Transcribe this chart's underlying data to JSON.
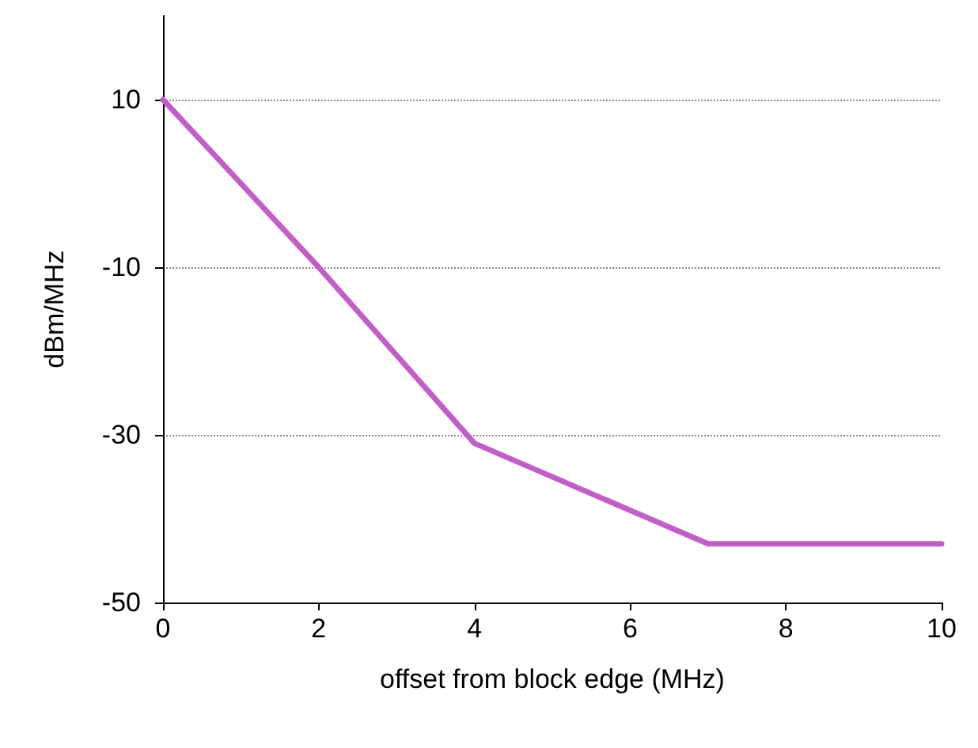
{
  "chart_data": {
    "type": "line",
    "xlabel": "offset from block edge (MHz)",
    "ylabel": "dBm/MHz",
    "x": [
      0,
      2,
      4,
      7,
      10
    ],
    "series": [
      {
        "color": "#c25ec8",
        "values": [
          10,
          -10,
          -31,
          -43,
          -43
        ]
      }
    ],
    "xlim": [
      0,
      10
    ],
    "xticks": [
      0,
      2,
      4,
      6,
      8,
      10
    ],
    "ylim": [
      -50,
      20
    ],
    "yticks": [
      -50,
      -30,
      -10,
      10
    ],
    "grid": "y",
    "marker": "none",
    "line_style": "solid"
  }
}
